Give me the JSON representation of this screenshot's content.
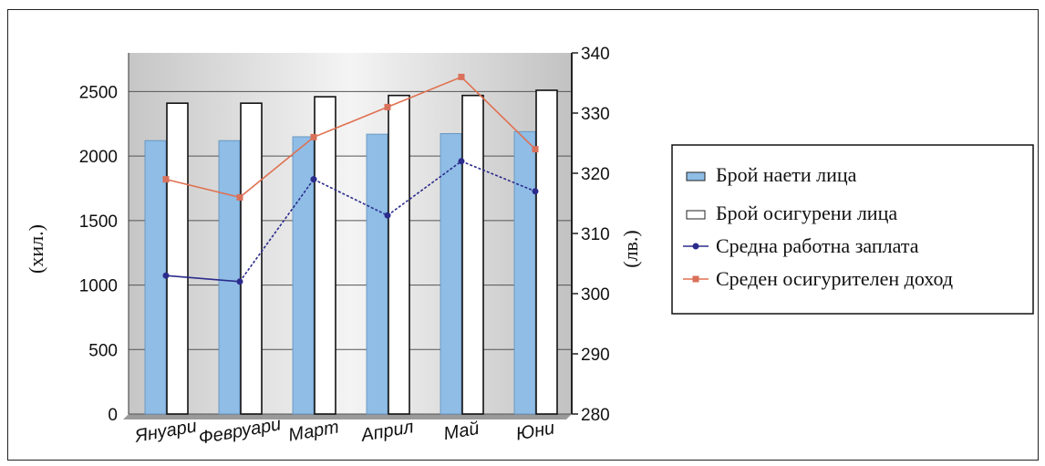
{
  "chart_data": {
    "type": "bar",
    "categories": [
      "Януари",
      "Февруари",
      "Март",
      "Април",
      "Май",
      "Юни"
    ],
    "series": [
      {
        "name": "Брой наети лица",
        "kind": "bar",
        "axis": "left",
        "color": "#8fbde6",
        "values": [
          2120,
          2120,
          2150,
          2170,
          2175,
          2190
        ]
      },
      {
        "name": "Брой осигурени лица",
        "kind": "bar",
        "axis": "left",
        "color": "#ffffff",
        "values": [
          2410,
          2410,
          2460,
          2470,
          2470,
          2510
        ]
      },
      {
        "name": "Средна работна заплата",
        "kind": "line",
        "axis": "right",
        "color": "#2b2b8c",
        "values": [
          303,
          302,
          319,
          313,
          322,
          317
        ]
      },
      {
        "name": "Среден осигурителен доход",
        "kind": "line",
        "axis": "right",
        "color": "#e07050",
        "values": [
          319,
          316,
          326,
          331,
          336,
          324
        ]
      }
    ],
    "y_left": {
      "label": "(хил.)",
      "range": [
        0,
        2800
      ],
      "ticks": [
        0,
        500,
        1000,
        1500,
        2000,
        2500
      ]
    },
    "y_right": {
      "label": "(лв.)",
      "range": [
        280,
        340
      ],
      "ticks": [
        280,
        290,
        300,
        310,
        320,
        330,
        340
      ]
    },
    "grid": true,
    "legend": "right"
  }
}
